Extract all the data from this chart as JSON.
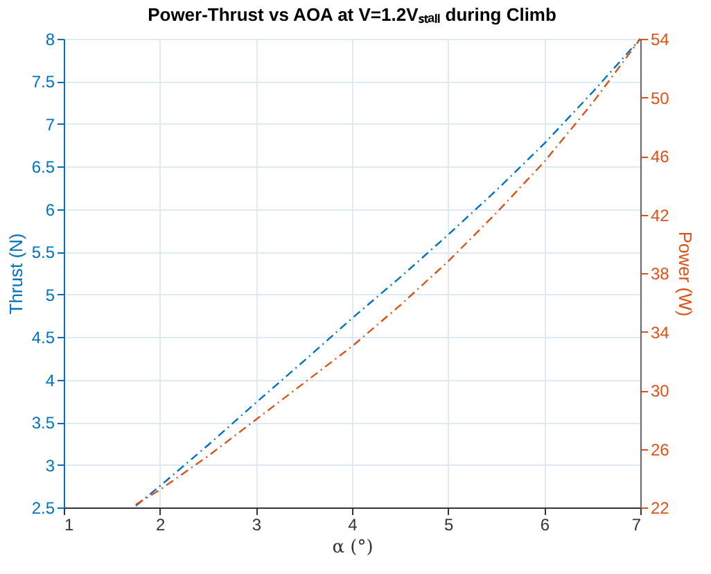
{
  "chart_data": {
    "type": "line",
    "title": "Power-Thrust vs AOA at V=1.2Vₛₜₐₗₗ during Climb",
    "xlabel": "α (°)",
    "ylabel": "Thrust (N)",
    "y2label": "Power (W)",
    "xlim": [
      1,
      7
    ],
    "xticks": [
      1,
      2,
      3,
      4,
      5,
      6,
      7
    ],
    "ylim": [
      2.5,
      8
    ],
    "yticks": [
      2.5,
      3,
      3.5,
      4,
      4.5,
      5,
      5.5,
      6,
      6.5,
      7,
      7.5,
      8
    ],
    "y2lim": [
      22,
      54
    ],
    "y2ticks": [
      22,
      26,
      30,
      34,
      38,
      42,
      46,
      50,
      54
    ],
    "grid": true,
    "line_style": "dashed",
    "marker": "none",
    "series": [
      {
        "color": "#0072bd",
        "x": [
          1.75,
          2,
          2.5,
          3,
          3.5,
          4,
          4.5,
          5,
          5.5,
          6,
          6.5,
          7
        ],
        "values": [
          2.52,
          2.75,
          3.23,
          3.73,
          4.22,
          4.72,
          5.2,
          5.7,
          6.22,
          6.77,
          7.37,
          8
        ]
      },
      {
        "color": "#d95319",
        "axis": "y2",
        "x": [
          1.75,
          2,
          2.5,
          3,
          3.5,
          4,
          4.5,
          5,
          5.5,
          6,
          6.5,
          7
        ],
        "values": [
          22.2,
          23.2,
          25.5,
          28,
          30.5,
          33,
          35.8,
          38.8,
          42.1,
          45.6,
          49.6,
          54
        ]
      }
    ]
  }
}
